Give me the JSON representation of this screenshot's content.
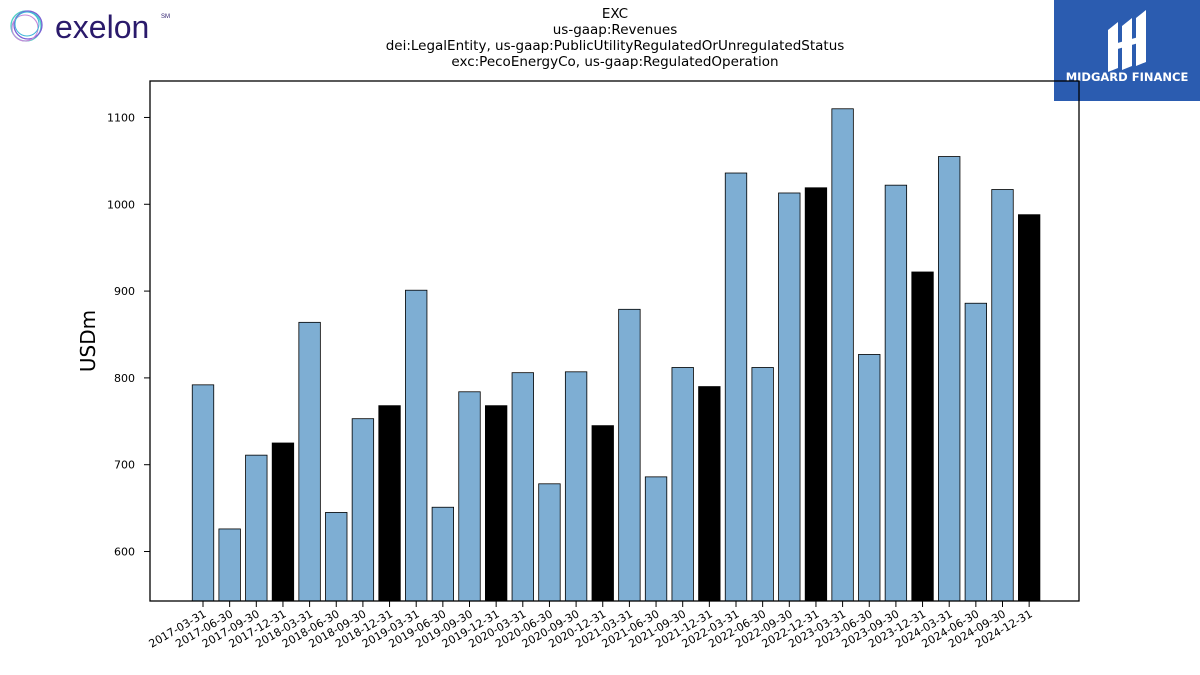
{
  "logos": {
    "left_brand": "exelon",
    "left_mark": "SM",
    "right_brand": "MIDGARD FINANCE"
  },
  "colors": {
    "bar_default": "#7eaed3",
    "bar_highlight": "#000000",
    "logo_purple": "#2a1a6b",
    "logo_blue_bg": "#2b5cb0"
  },
  "chart_data": {
    "type": "bar",
    "title": "EXC",
    "subtitle_lines": [
      "us-gaap:Revenues",
      "dei:LegalEntity, us-gaap:PublicUtilityRegulatedOrUnregulatedStatus",
      "exc:PecoEnergyCo, us-gaap:RegulatedOperation"
    ],
    "xlabel": "",
    "ylabel": "USDm",
    "ylim": [
      543,
      1142
    ],
    "yticks": [
      600,
      700,
      800,
      900,
      1000,
      1100
    ],
    "grid": false,
    "categories": [
      "2017-03-31",
      "2017-06-30",
      "2017-09-30",
      "2017-12-31",
      "2018-03-31",
      "2018-06-30",
      "2018-09-30",
      "2018-12-31",
      "2019-03-31",
      "2019-06-30",
      "2019-09-30",
      "2019-12-31",
      "2020-03-31",
      "2020-06-30",
      "2020-09-30",
      "2020-12-31",
      "2021-03-31",
      "2021-06-30",
      "2021-09-30",
      "2021-12-31",
      "2022-03-31",
      "2022-06-30",
      "2022-09-30",
      "2022-12-31",
      "2023-03-31",
      "2023-06-30",
      "2023-09-30",
      "2023-12-31",
      "2024-03-31",
      "2024-06-30",
      "2024-09-30",
      "2024-12-31"
    ],
    "values": [
      792,
      626,
      711,
      725,
      864,
      645,
      753,
      768,
      901,
      651,
      784,
      768,
      806,
      678,
      807,
      745,
      879,
      686,
      812,
      790,
      1036,
      812,
      1013,
      1019,
      1110,
      827,
      1022,
      922,
      1055,
      886,
      1017,
      988
    ],
    "highlight": [
      false,
      false,
      false,
      true,
      false,
      false,
      false,
      true,
      false,
      false,
      false,
      true,
      false,
      false,
      false,
      true,
      false,
      false,
      false,
      true,
      false,
      false,
      false,
      true,
      false,
      false,
      false,
      true,
      false,
      false,
      false,
      true
    ]
  }
}
